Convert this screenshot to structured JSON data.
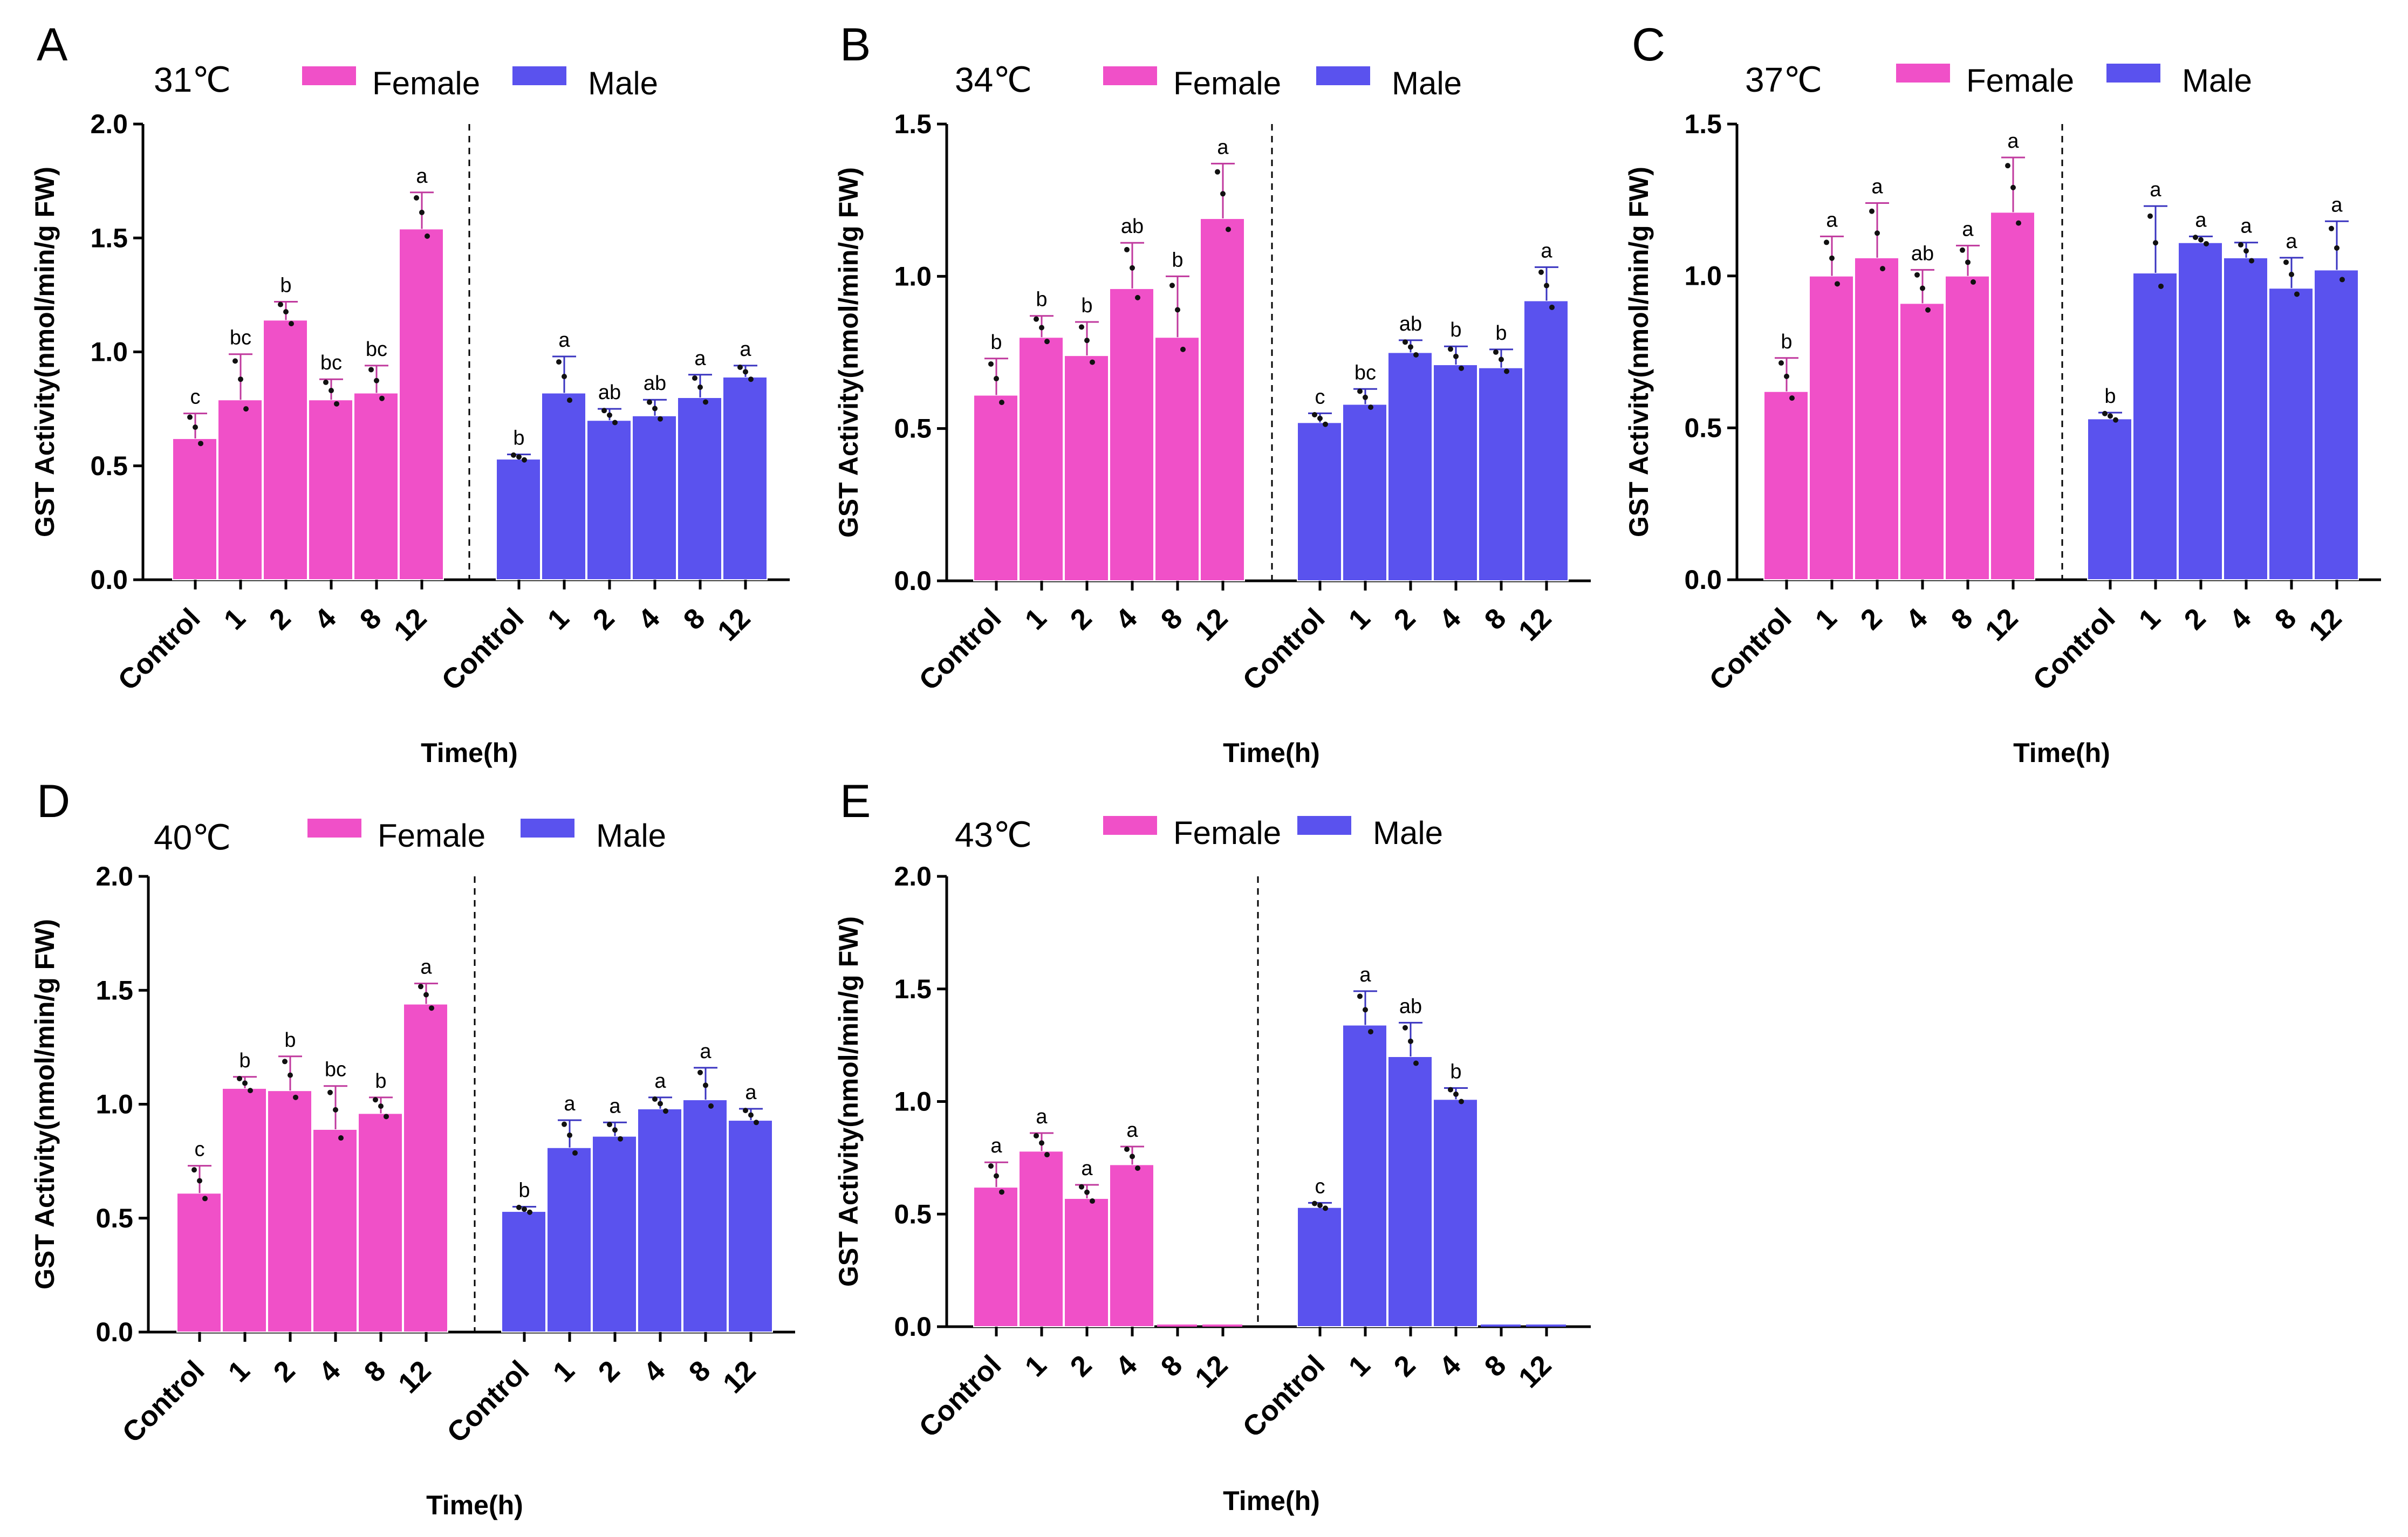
{
  "figure": {
    "y_axis_label": "GST Activity(nmol/min/g FW)",
    "x_axis_label": "Time(h)",
    "legend": {
      "female": "Female",
      "male": "Male"
    },
    "colors": {
      "female": "#f050c8",
      "male": "#5a52ee",
      "female_error": "#c0399e",
      "male_error": "#3a34c0"
    }
  },
  "chart_data": [
    {
      "panel": "A",
      "type": "bar",
      "title": "31℃",
      "xlabel": "Time(h)",
      "ylabel": "GST Activity(nmol/min/g FW)",
      "ylim": [
        0,
        2.0
      ],
      "yticks": [
        "0.0",
        "0.5",
        "1.0",
        "1.5",
        "2.0"
      ],
      "categories": [
        "Control",
        "1",
        "2",
        "4",
        "8",
        "12"
      ],
      "series": [
        {
          "name": "Female",
          "values": [
            0.62,
            0.79,
            1.14,
            0.79,
            0.82,
            1.54
          ],
          "errors": [
            0.11,
            0.2,
            0.08,
            0.09,
            0.12,
            0.16
          ],
          "labels": [
            "c",
            "bc",
            "b",
            "bc",
            "bc",
            "a"
          ]
        },
        {
          "name": "Male",
          "values": [
            0.53,
            0.82,
            0.7,
            0.72,
            0.8,
            0.89
          ],
          "errors": [
            0.02,
            0.16,
            0.05,
            0.07,
            0.1,
            0.05
          ],
          "labels": [
            "b",
            "a",
            "ab",
            "ab",
            "a",
            "a"
          ]
        }
      ]
    },
    {
      "panel": "B",
      "type": "bar",
      "title": "34℃",
      "xlabel": "Time(h)",
      "ylabel": "GST Activity(nmol/min/g FW)",
      "ylim": [
        0,
        1.5
      ],
      "yticks": [
        "0.0",
        "0.5",
        "1.0",
        "1.5"
      ],
      "categories": [
        "Control",
        "1",
        "2",
        "4",
        "8",
        "12"
      ],
      "series": [
        {
          "name": "Female",
          "values": [
            0.61,
            0.8,
            0.74,
            0.96,
            0.8,
            1.19
          ],
          "errors": [
            0.12,
            0.07,
            0.11,
            0.15,
            0.2,
            0.18
          ],
          "labels": [
            "b",
            "b",
            "b",
            "ab",
            "b",
            "a"
          ]
        },
        {
          "name": "Male",
          "values": [
            0.52,
            0.58,
            0.75,
            0.71,
            0.7,
            0.92
          ],
          "errors": [
            0.03,
            0.05,
            0.04,
            0.06,
            0.06,
            0.11
          ],
          "labels": [
            "c",
            "bc",
            "ab",
            "b",
            "b",
            "a"
          ]
        }
      ]
    },
    {
      "panel": "C",
      "type": "bar",
      "title": "37℃",
      "xlabel": "Time(h)",
      "ylabel": "GST Activity(nmol/min/g FW)",
      "ylim": [
        0,
        1.5
      ],
      "yticks": [
        "0.0",
        "0.5",
        "1.0",
        "1.5"
      ],
      "categories": [
        "Control",
        "1",
        "2",
        "4",
        "8",
        "12"
      ],
      "series": [
        {
          "name": "Female",
          "values": [
            0.62,
            1.0,
            1.06,
            0.91,
            1.0,
            1.21
          ],
          "errors": [
            0.11,
            0.13,
            0.18,
            0.11,
            0.1,
            0.18
          ],
          "labels": [
            "b",
            "a",
            "a",
            "ab",
            "a",
            "a"
          ]
        },
        {
          "name": "Male",
          "values": [
            0.53,
            1.01,
            1.11,
            1.06,
            0.96,
            1.02
          ],
          "errors": [
            0.02,
            0.22,
            0.02,
            0.05,
            0.1,
            0.16
          ],
          "labels": [
            "b",
            "a",
            "a",
            "a",
            "a",
            "a"
          ]
        }
      ]
    },
    {
      "panel": "D",
      "type": "bar",
      "title": "40℃",
      "xlabel": "Time(h)",
      "ylabel": "GST Activity(nmol/min/g FW)",
      "ylim": [
        0,
        2.0
      ],
      "yticks": [
        "0.0",
        "0.5",
        "1.0",
        "1.5",
        "2.0"
      ],
      "categories": [
        "Control",
        "1",
        "2",
        "4",
        "8",
        "12"
      ],
      "series": [
        {
          "name": "Female",
          "values": [
            0.61,
            1.07,
            1.06,
            0.89,
            0.96,
            1.44
          ],
          "errors": [
            0.12,
            0.05,
            0.15,
            0.19,
            0.07,
            0.09
          ],
          "labels": [
            "c",
            "b",
            "b",
            "bc",
            "b",
            "a"
          ]
        },
        {
          "name": "Male",
          "values": [
            0.53,
            0.81,
            0.86,
            0.98,
            1.02,
            0.93
          ],
          "errors": [
            0.02,
            0.12,
            0.06,
            0.05,
            0.14,
            0.05
          ],
          "labels": [
            "b",
            "a",
            "a",
            "a",
            "a",
            "a"
          ]
        }
      ]
    },
    {
      "panel": "E",
      "type": "bar",
      "title": "43℃",
      "xlabel": "Time(h)",
      "ylabel": "GST Activity(nmol/min/g FW)",
      "ylim": [
        0,
        2.0
      ],
      "yticks": [
        "0.0",
        "0.5",
        "1.0",
        "1.5",
        "2.0"
      ],
      "categories": [
        "Control",
        "1",
        "2",
        "4",
        "8",
        "12"
      ],
      "series": [
        {
          "name": "Female",
          "values": [
            0.62,
            0.78,
            0.57,
            0.72,
            0,
            0
          ],
          "errors": [
            0.11,
            0.08,
            0.06,
            0.08,
            0,
            0
          ],
          "labels": [
            "a",
            "a",
            "a",
            "a",
            "",
            ""
          ]
        },
        {
          "name": "Male",
          "values": [
            0.53,
            1.34,
            1.2,
            1.01,
            0,
            0
          ],
          "errors": [
            0.02,
            0.15,
            0.15,
            0.05,
            0,
            0
          ],
          "labels": [
            "c",
            "a",
            "ab",
            "b",
            "",
            ""
          ]
        }
      ]
    }
  ]
}
